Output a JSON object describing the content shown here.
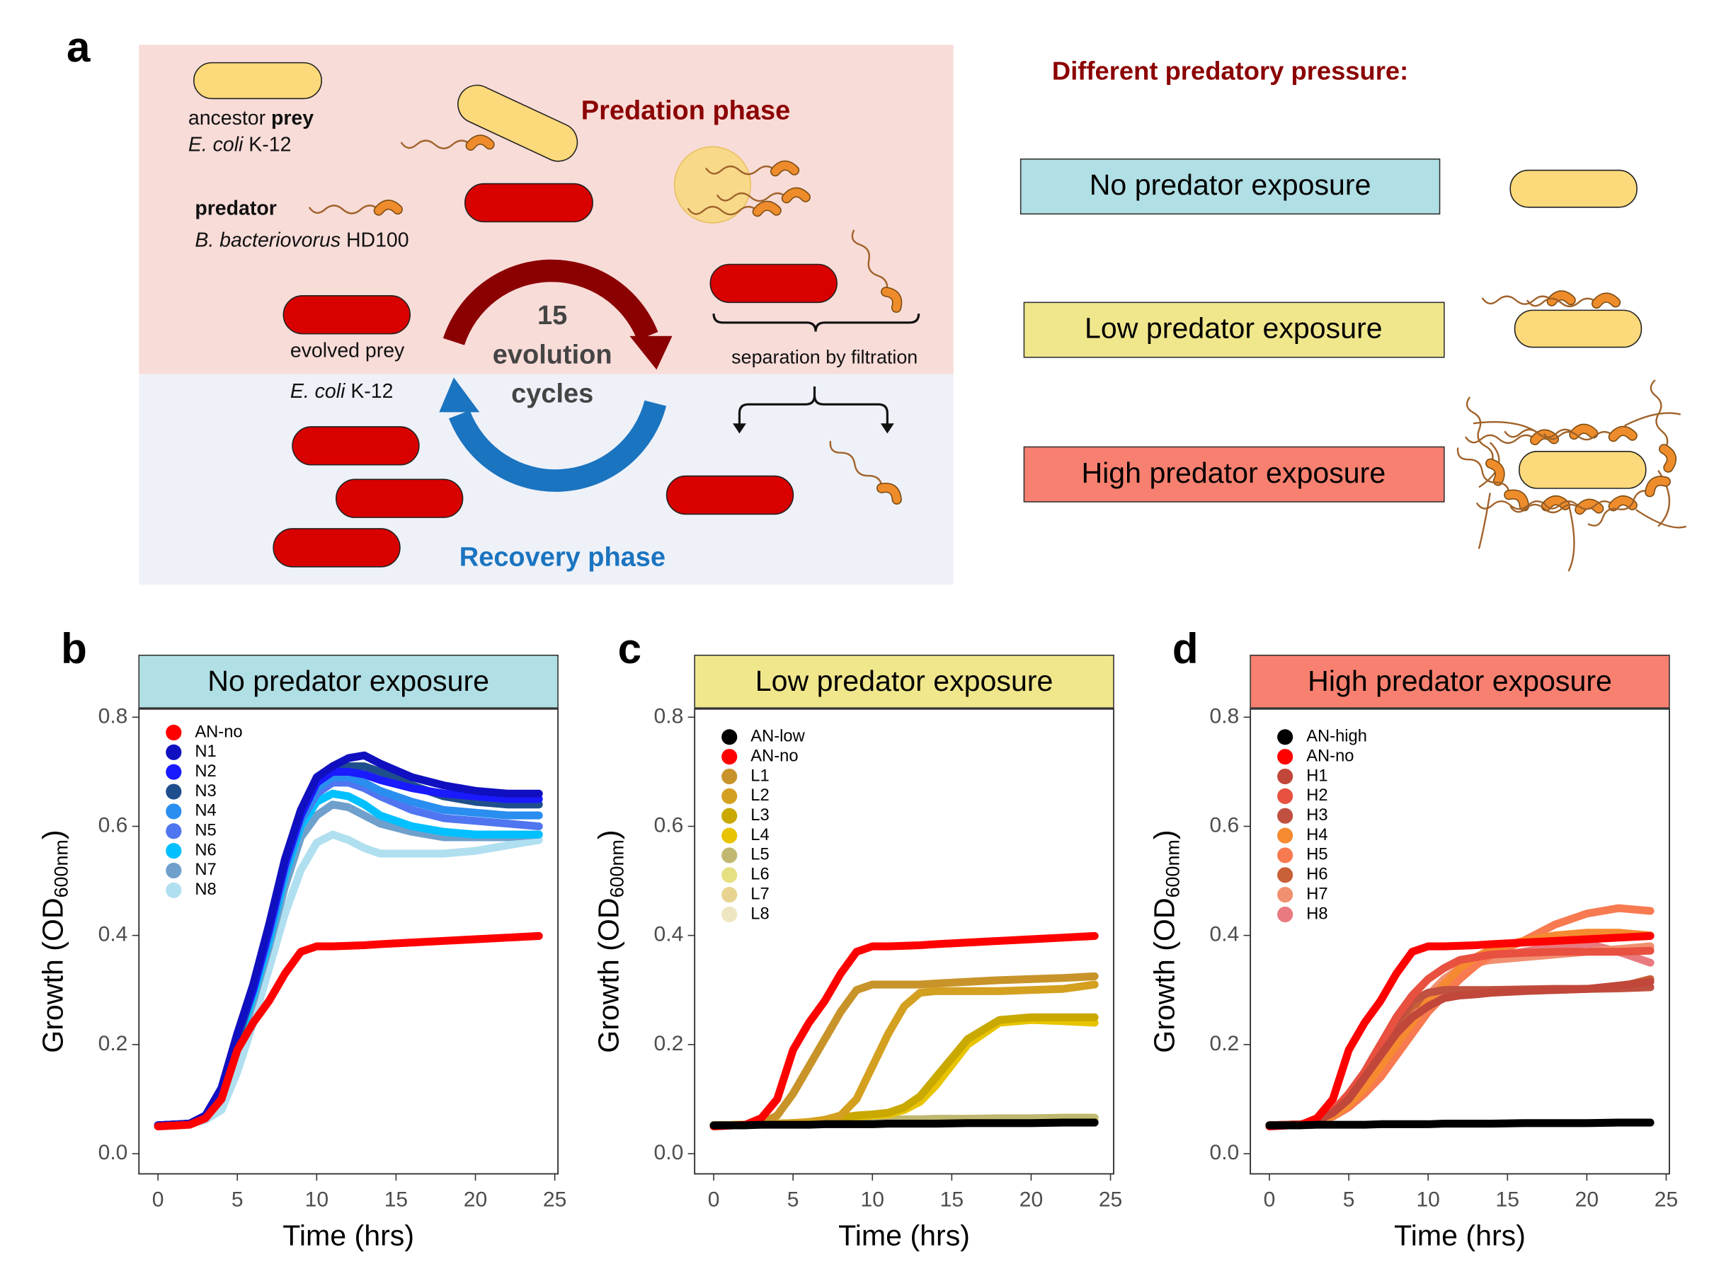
{
  "diagram": {
    "label": "a",
    "ancestor": {
      "text": "ancestor ",
      "bold": "prey"
    },
    "ancestor_species": {
      "italic": "E. coli",
      "text": " K-12"
    },
    "predator": "predator",
    "predator_species": {
      "italic": "B. bacteriovorus",
      "text": " HD100"
    },
    "predation_phase": "Predation phase",
    "evolved": "evolved prey",
    "evolved_species": {
      "italic": "E. coli",
      "text": " K-12"
    },
    "cycles": [
      "15",
      "evolution",
      "cycles"
    ],
    "filtration": "separation by filtration",
    "recovery_phase": "Recovery phase",
    "pressure_title": "Different predatory pressure:",
    "pressure_levels": [
      "No predator exposure",
      "Low predator exposure",
      "High predator exposure"
    ]
  },
  "chart_data": [
    {
      "type": "line",
      "label": "b",
      "title": "No predator exposure",
      "title_background": "#b0dfe5",
      "ylabel": [
        "Growth (OD",
        "600nm",
        ")"
      ],
      "xlabel": "Time (hrs)",
      "xlim": [
        -1.2,
        25.2
      ],
      "ylim": [
        -0.037,
        0.815
      ],
      "xticks": [
        0,
        5,
        10,
        15,
        20,
        25
      ],
      "yticks": [
        {
          "value": 0,
          "label": "0.0"
        },
        0.2,
        0.4,
        0.6,
        0.8
      ],
      "legend": "upper left",
      "x": [
        0,
        2,
        3,
        4,
        5,
        6,
        7,
        8,
        9,
        10,
        11,
        12,
        13,
        14,
        16,
        18,
        20,
        22,
        24
      ],
      "series": [
        {
          "name": "AN-no",
          "color": "#ff0000",
          "values": [
            0.05,
            0.053,
            0.065,
            0.1,
            0.19,
            0.24,
            0.28,
            0.33,
            0.37,
            0.38,
            0.38,
            0.381,
            0.382,
            0.384,
            0.387,
            0.39,
            0.393,
            0.396,
            0.399
          ]
        },
        {
          "name": "N1",
          "color": "#1010c0",
          "values": [
            0.052,
            0.055,
            0.07,
            0.12,
            0.22,
            0.31,
            0.42,
            0.54,
            0.63,
            0.69,
            0.71,
            0.725,
            0.73,
            0.715,
            0.69,
            0.675,
            0.665,
            0.66,
            0.66
          ]
        },
        {
          "name": "N2",
          "color": "#1a1aff",
          "values": [
            0.052,
            0.055,
            0.07,
            0.12,
            0.22,
            0.3,
            0.41,
            0.53,
            0.62,
            0.68,
            0.7,
            0.7,
            0.695,
            0.685,
            0.67,
            0.66,
            0.655,
            0.65,
            0.65
          ]
        },
        {
          "name": "N3",
          "color": "#1f4e8c",
          "values": [
            0.052,
            0.055,
            0.07,
            0.12,
            0.21,
            0.3,
            0.41,
            0.53,
            0.62,
            0.68,
            0.705,
            0.71,
            0.71,
            0.7,
            0.675,
            0.655,
            0.645,
            0.64,
            0.64
          ]
        },
        {
          "name": "N4",
          "color": "#2a8ef0",
          "values": [
            0.052,
            0.055,
            0.07,
            0.11,
            0.21,
            0.3,
            0.4,
            0.52,
            0.61,
            0.67,
            0.69,
            0.69,
            0.68,
            0.665,
            0.645,
            0.63,
            0.625,
            0.62,
            0.62
          ]
        },
        {
          "name": "N5",
          "color": "#5075f0",
          "values": [
            0.052,
            0.055,
            0.07,
            0.11,
            0.21,
            0.3,
            0.4,
            0.52,
            0.61,
            0.66,
            0.68,
            0.68,
            0.67,
            0.655,
            0.63,
            0.615,
            0.61,
            0.605,
            0.6
          ]
        },
        {
          "name": "N6",
          "color": "#00c0ff",
          "values": [
            0.052,
            0.055,
            0.068,
            0.11,
            0.2,
            0.29,
            0.39,
            0.51,
            0.6,
            0.645,
            0.66,
            0.655,
            0.64,
            0.62,
            0.6,
            0.59,
            0.585,
            0.585,
            0.585
          ]
        },
        {
          "name": "N7",
          "color": "#6fa0cc",
          "values": [
            0.052,
            0.055,
            0.068,
            0.1,
            0.19,
            0.28,
            0.38,
            0.49,
            0.58,
            0.62,
            0.64,
            0.635,
            0.62,
            0.605,
            0.59,
            0.58,
            0.58,
            0.58,
            0.585
          ]
        },
        {
          "name": "N8",
          "color": "#b0dff0",
          "values": [
            0.052,
            0.055,
            0.062,
            0.08,
            0.15,
            0.24,
            0.34,
            0.44,
            0.52,
            0.57,
            0.585,
            0.575,
            0.56,
            0.55,
            0.55,
            0.55,
            0.555,
            0.565,
            0.575
          ]
        }
      ]
    },
    {
      "type": "line",
      "label": "c",
      "title": "Low predator exposure",
      "title_background": "#f0e68c",
      "ylabel": [
        "Growth (OD",
        "600nm",
        ")"
      ],
      "xlabel": "Time (hrs)",
      "xlim": [
        -1.2,
        25.2
      ],
      "ylim": [
        -0.037,
        0.815
      ],
      "xticks": [
        0,
        5,
        10,
        15,
        20,
        25
      ],
      "yticks": [
        {
          "value": 0,
          "label": "0.0"
        },
        0.2,
        0.4,
        0.6,
        0.8
      ],
      "legend": "upper left",
      "x": [
        0,
        2,
        3,
        4,
        5,
        6,
        7,
        8,
        9,
        10,
        11,
        12,
        13,
        14,
        16,
        18,
        20,
        22,
        24
      ],
      "series": [
        {
          "name": "AN-low",
          "color": "#000000",
          "values": [
            0.052,
            0.052,
            0.053,
            0.053,
            0.053,
            0.053,
            0.054,
            0.054,
            0.054,
            0.054,
            0.055,
            0.055,
            0.055,
            0.055,
            0.056,
            0.056,
            0.056,
            0.057,
            0.057
          ]
        },
        {
          "name": "AN-no",
          "color": "#ff0000",
          "values": [
            0.05,
            0.053,
            0.065,
            0.1,
            0.19,
            0.24,
            0.28,
            0.33,
            0.37,
            0.38,
            0.38,
            0.381,
            0.382,
            0.384,
            0.387,
            0.39,
            0.393,
            0.396,
            0.399
          ]
        },
        {
          "name": "L1",
          "color": "#c8942a",
          "values": [
            0.052,
            0.052,
            0.055,
            0.07,
            0.11,
            0.16,
            0.21,
            0.26,
            0.3,
            0.31,
            0.31,
            0.31,
            0.31,
            0.312,
            0.315,
            0.318,
            0.32,
            0.322,
            0.325
          ]
        },
        {
          "name": "L2",
          "color": "#d4a020",
          "values": [
            0.052,
            0.053,
            0.054,
            0.055,
            0.056,
            0.058,
            0.062,
            0.07,
            0.1,
            0.16,
            0.22,
            0.27,
            0.295,
            0.298,
            0.298,
            0.298,
            0.3,
            0.302,
            0.31
          ]
        },
        {
          "name": "L3",
          "color": "#c9a800",
          "values": [
            0.052,
            0.053,
            0.054,
            0.055,
            0.056,
            0.058,
            0.062,
            0.066,
            0.07,
            0.072,
            0.075,
            0.085,
            0.105,
            0.14,
            0.21,
            0.245,
            0.25,
            0.25,
            0.25
          ]
        },
        {
          "name": "L4",
          "color": "#e8c400",
          "values": [
            0.052,
            0.053,
            0.054,
            0.055,
            0.056,
            0.058,
            0.06,
            0.064,
            0.068,
            0.07,
            0.072,
            0.08,
            0.095,
            0.125,
            0.2,
            0.24,
            0.245,
            0.243,
            0.24
          ]
        },
        {
          "name": "L5",
          "color": "#c0b870",
          "values": [
            0.052,
            0.053,
            0.054,
            0.055,
            0.056,
            0.057,
            0.058,
            0.059,
            0.06,
            0.061,
            0.062,
            0.063,
            0.063,
            0.064,
            0.064,
            0.065,
            0.065,
            0.066,
            0.066
          ]
        },
        {
          "name": "L6",
          "color": "#e5e080",
          "values": [
            0.052,
            0.053,
            0.054,
            0.055,
            0.055,
            0.056,
            0.057,
            0.058,
            0.059,
            0.06,
            0.06,
            0.061,
            0.061,
            0.062,
            0.062,
            0.062,
            0.063,
            0.063,
            0.063
          ]
        },
        {
          "name": "L7",
          "color": "#e8d490",
          "values": [
            0.052,
            0.053,
            0.053,
            0.054,
            0.055,
            0.056,
            0.057,
            0.057,
            0.058,
            0.059,
            0.059,
            0.06,
            0.06,
            0.061,
            0.061,
            0.061,
            0.062,
            0.062,
            0.062
          ]
        },
        {
          "name": "L8",
          "color": "#ede6c0",
          "values": [
            0.052,
            0.052,
            0.053,
            0.054,
            0.054,
            0.055,
            0.056,
            0.056,
            0.057,
            0.058,
            0.058,
            0.058,
            0.059,
            0.059,
            0.06,
            0.06,
            0.06,
            0.06,
            0.06
          ]
        }
      ]
    },
    {
      "type": "line",
      "label": "d",
      "title": "High predator exposure",
      "title_background": "#f88070",
      "ylabel": [
        "Growth (OD",
        "600nm",
        ")"
      ],
      "xlabel": "Time (hrs)",
      "xlim": [
        -1.2,
        25.2
      ],
      "ylim": [
        -0.037,
        0.815
      ],
      "xticks": [
        0,
        5,
        10,
        15,
        20,
        25
      ],
      "yticks": [
        {
          "value": 0,
          "label": "0.0"
        },
        0.2,
        0.4,
        0.6,
        0.8
      ],
      "legend": "upper left",
      "x": [
        0,
        2,
        3,
        4,
        5,
        6,
        7,
        8,
        9,
        10,
        11,
        12,
        13,
        14,
        16,
        18,
        20,
        22,
        24
      ],
      "series": [
        {
          "name": "AN-high",
          "color": "#000000",
          "values": [
            0.052,
            0.052,
            0.053,
            0.053,
            0.053,
            0.053,
            0.054,
            0.054,
            0.054,
            0.054,
            0.055,
            0.055,
            0.055,
            0.055,
            0.056,
            0.056,
            0.056,
            0.057,
            0.057
          ]
        },
        {
          "name": "AN-no",
          "color": "#ff0000",
          "values": [
            0.05,
            0.053,
            0.065,
            0.1,
            0.19,
            0.24,
            0.28,
            0.33,
            0.37,
            0.38,
            0.38,
            0.381,
            0.382,
            0.384,
            0.387,
            0.39,
            0.393,
            0.396,
            0.399
          ]
        },
        {
          "name": "H1",
          "color": "#c0473a",
          "values": [
            0.052,
            0.054,
            0.06,
            0.075,
            0.1,
            0.14,
            0.18,
            0.22,
            0.25,
            0.27,
            0.285,
            0.29,
            0.292,
            0.295,
            0.298,
            0.3,
            0.302,
            0.308,
            0.315
          ]
        },
        {
          "name": "H2",
          "color": "#e85040",
          "values": [
            0.052,
            0.054,
            0.06,
            0.078,
            0.11,
            0.15,
            0.2,
            0.25,
            0.29,
            0.32,
            0.34,
            0.355,
            0.36,
            0.365,
            0.368,
            0.37,
            0.37,
            0.37,
            0.372
          ]
        },
        {
          "name": "H3",
          "color": "#c05040",
          "values": [
            0.052,
            0.054,
            0.06,
            0.075,
            0.1,
            0.14,
            0.19,
            0.24,
            0.28,
            0.295,
            0.3,
            0.3,
            0.3,
            0.3,
            0.301,
            0.302,
            0.302,
            0.303,
            0.305
          ]
        },
        {
          "name": "H4",
          "color": "#f58a30",
          "values": [
            0.052,
            0.053,
            0.058,
            0.07,
            0.09,
            0.12,
            0.16,
            0.2,
            0.24,
            0.28,
            0.31,
            0.34,
            0.36,
            0.375,
            0.39,
            0.4,
            0.405,
            0.405,
            0.4
          ]
        },
        {
          "name": "H5",
          "color": "#f87a50",
          "values": [
            0.052,
            0.053,
            0.058,
            0.068,
            0.085,
            0.11,
            0.14,
            0.18,
            0.22,
            0.26,
            0.29,
            0.32,
            0.345,
            0.365,
            0.39,
            0.42,
            0.44,
            0.45,
            0.445
          ]
        },
        {
          "name": "H6",
          "color": "#c86038",
          "values": [
            0.052,
            0.054,
            0.06,
            0.076,
            0.1,
            0.15,
            0.2,
            0.24,
            0.27,
            0.285,
            0.295,
            0.298,
            0.298,
            0.3,
            0.3,
            0.3,
            0.302,
            0.305,
            0.32
          ]
        },
        {
          "name": "H7",
          "color": "#f09070",
          "values": [
            0.052,
            0.053,
            0.059,
            0.072,
            0.095,
            0.13,
            0.17,
            0.21,
            0.25,
            0.29,
            0.32,
            0.34,
            0.35,
            0.355,
            0.36,
            0.365,
            0.37,
            0.375,
            0.38
          ]
        },
        {
          "name": "H8",
          "color": "#e87a80",
          "values": [
            0.052,
            0.053,
            0.058,
            0.07,
            0.09,
            0.12,
            0.16,
            0.2,
            0.24,
            0.28,
            0.31,
            0.33,
            0.35,
            0.36,
            0.37,
            0.38,
            0.385,
            0.37,
            0.35
          ]
        }
      ]
    }
  ]
}
